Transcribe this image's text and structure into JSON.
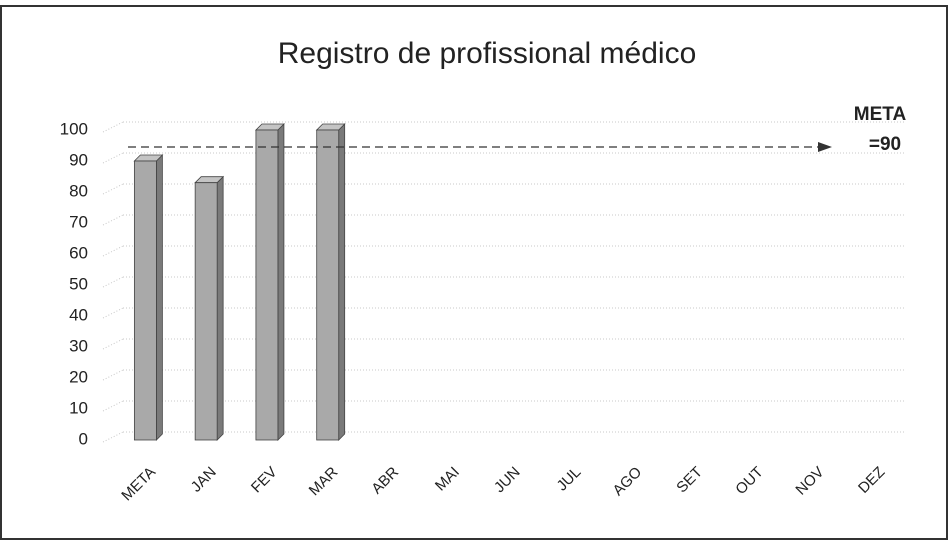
{
  "chart_data": {
    "type": "bar",
    "title": "Registro de profissional médico",
    "categories": [
      "META",
      "JAN",
      "FEV",
      "MAR",
      "ABR",
      "MAI",
      "JUN",
      "JUL",
      "AGO",
      "SET",
      "OUT",
      "NOV",
      "DEZ"
    ],
    "values": [
      90,
      83,
      100,
      100,
      null,
      null,
      null,
      null,
      null,
      null,
      null,
      null,
      null
    ],
    "color": "#a9a9a9",
    "ylim": [
      0,
      100
    ],
    "yticks": [
      0,
      10,
      20,
      30,
      40,
      50,
      60,
      70,
      80,
      90,
      100
    ],
    "grid": true,
    "target": 90,
    "annotation": [
      "META",
      "=90"
    ]
  }
}
